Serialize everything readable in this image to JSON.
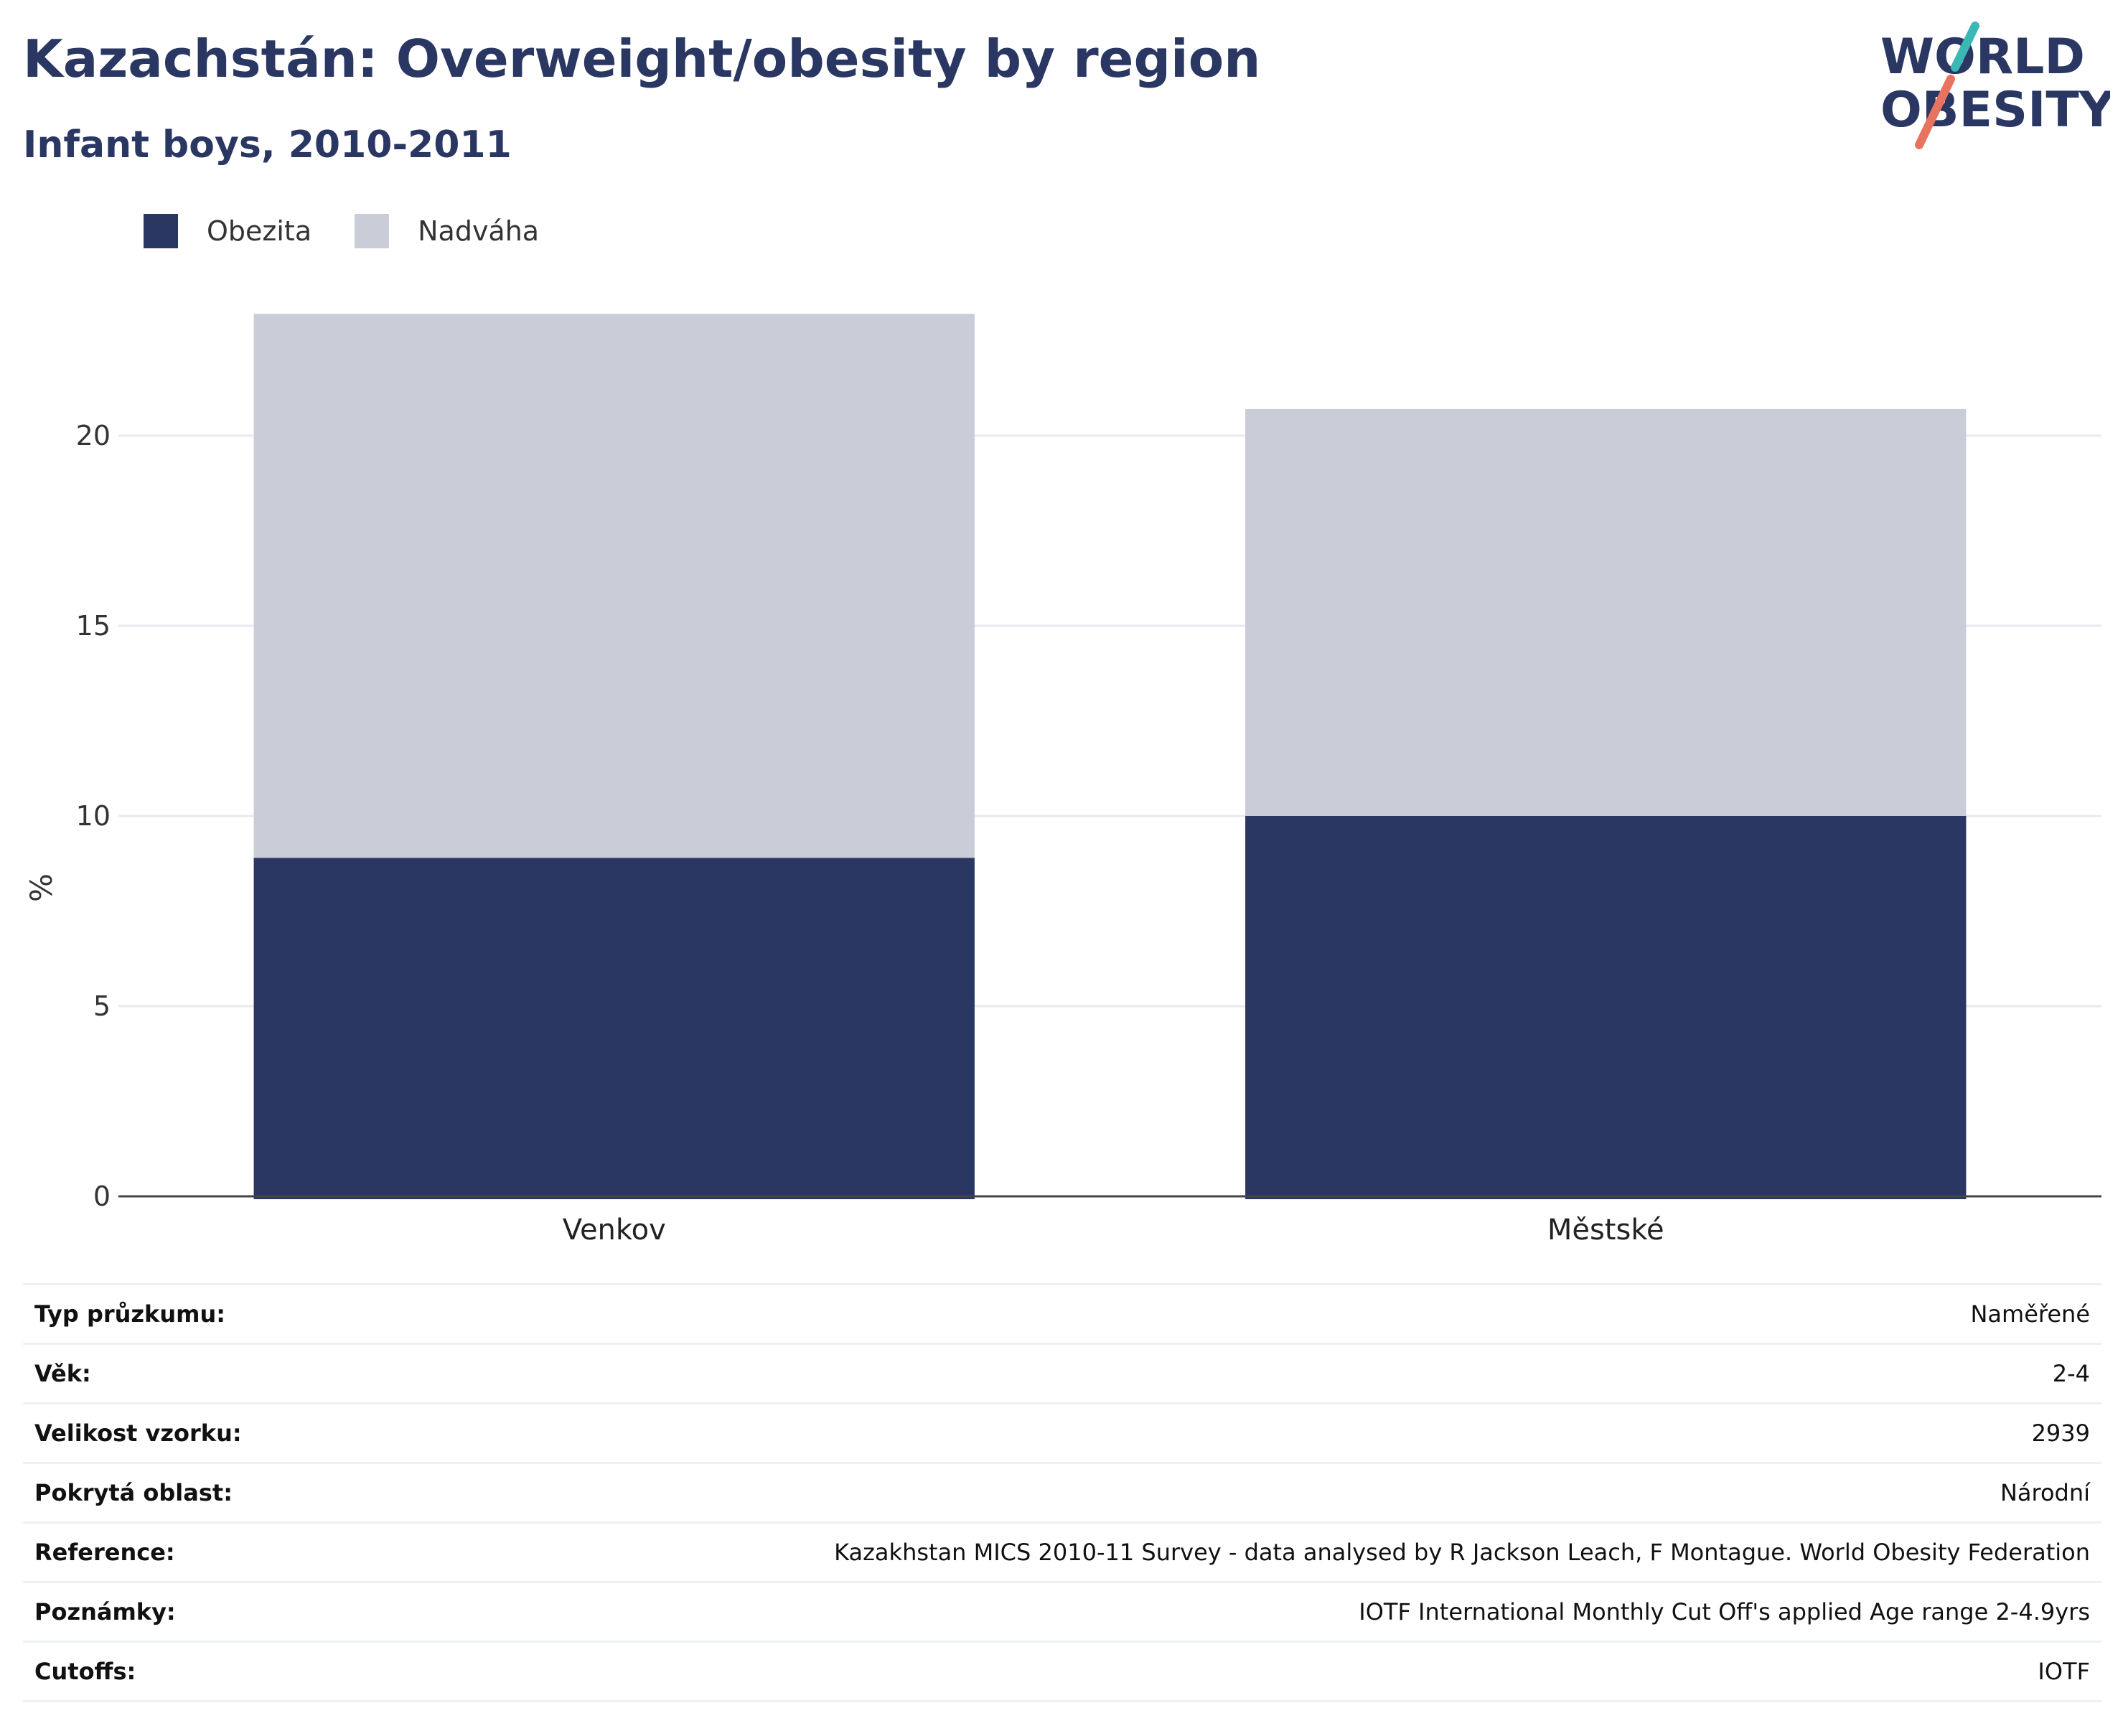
{
  "header": {
    "title": "Kazachstán: Overweight/obesity by region",
    "subtitle": "Infant boys, 2010-2011"
  },
  "logo": {
    "line1": "WORLD",
    "line2": "OBESITY",
    "colors": {
      "text": "#2a3763",
      "slash_teal": "#3ab8b5",
      "slash_coral": "#e8735e"
    }
  },
  "colors": {
    "obezita": "#2a3763",
    "nadvaha": "#cacdd8",
    "grid": "#e8eaf0",
    "axis": "#444444"
  },
  "chart_data": {
    "type": "bar",
    "stacked": true,
    "categories": [
      "Venkov",
      "Městské"
    ],
    "series": [
      {
        "name": "Obezita",
        "values": [
          8.9,
          10.0
        ]
      },
      {
        "name": "Nadváha",
        "values": [
          14.3,
          10.7
        ]
      }
    ],
    "ylabel": "%",
    "ylim": [
      0,
      24
    ],
    "yticks": [
      0,
      5,
      10,
      15,
      20
    ],
    "grid": true,
    "legend_position": "top-left"
  },
  "info": [
    {
      "key": "Typ průzkumu:",
      "value": "Naměřené"
    },
    {
      "key": "Věk:",
      "value": "2-4"
    },
    {
      "key": "Velikost vzorku:",
      "value": "2939"
    },
    {
      "key": "Pokrytá oblast:",
      "value": "Národní"
    },
    {
      "key": "Reference:",
      "value": "Kazakhstan MICS 2010-11 Survey - data analysed by R Jackson Leach, F Montague. World Obesity Federation"
    },
    {
      "key": "Poznámky:",
      "value": "IOTF International Monthly Cut Off's applied Age range 2-4.9yrs"
    },
    {
      "key": "Cutoffs:",
      "value": "IOTF"
    }
  ]
}
